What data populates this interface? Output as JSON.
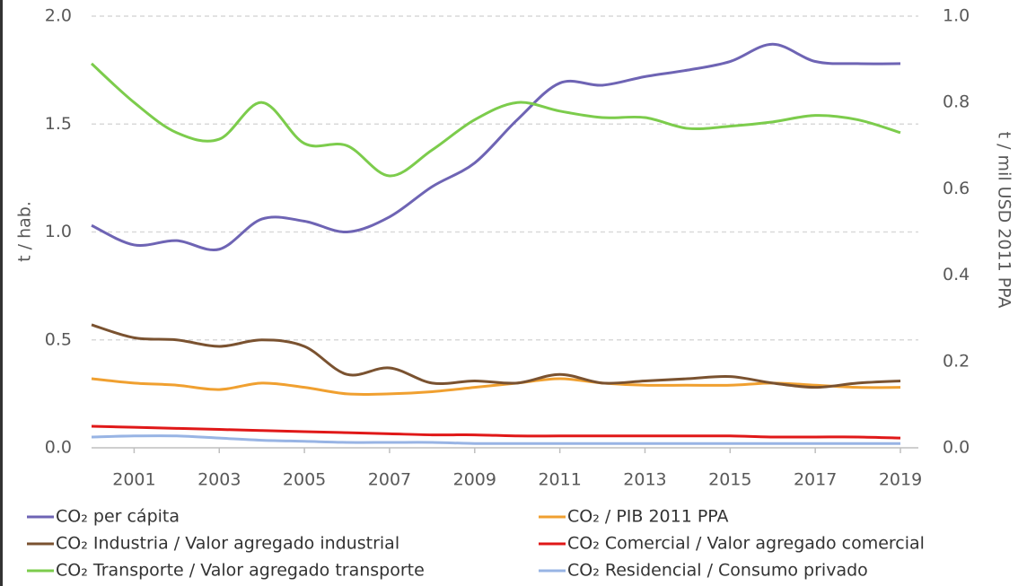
{
  "chart_data": {
    "type": "line",
    "ylabel": "t / hab.",
    "y2label": "t / mil USD 2011 PPA",
    "x": [
      2000,
      2001,
      2002,
      2003,
      2004,
      2005,
      2006,
      2007,
      2008,
      2009,
      2010,
      2011,
      2012,
      2013,
      2014,
      2015,
      2016,
      2017,
      2018,
      2019
    ],
    "xlim": [
      2000,
      2019
    ],
    "xticks": [
      2001,
      2003,
      2005,
      2007,
      2009,
      2011,
      2013,
      2015,
      2017,
      2019
    ],
    "ylim": [
      0,
      2
    ],
    "yticks": [
      {
        "value": 0,
        "label": "0.0"
      },
      0.5,
      {
        "value": 1,
        "label": "1.0"
      },
      1.5,
      {
        "value": 2,
        "label": "2.0"
      }
    ],
    "y2lim": [
      0,
      1
    ],
    "y2ticks": [
      {
        "value": 0,
        "label": "0.0"
      },
      0.2,
      0.4,
      0.6,
      0.8,
      {
        "value": 1,
        "label": "1.0"
      }
    ],
    "grid": true,
    "series": [
      {
        "name": "CO₂ per cápita",
        "color": "#6e64b4",
        "axis": "y",
        "values": [
          1.03,
          0.94,
          0.96,
          0.92,
          1.06,
          1.05,
          1.0,
          1.07,
          1.21,
          1.32,
          1.52,
          1.69,
          1.68,
          1.72,
          1.75,
          1.79,
          1.87,
          1.79,
          1.78,
          1.78
        ]
      },
      {
        "name": "CO₂ / PIB 2011 PPA",
        "color": "#f0a030",
        "axis": "y2",
        "values": [
          0.16,
          0.15,
          0.145,
          0.135,
          0.15,
          0.14,
          0.125,
          0.125,
          0.13,
          0.14,
          0.15,
          0.16,
          0.15,
          0.145,
          0.145,
          0.145,
          0.15,
          0.145,
          0.14,
          0.14
        ]
      },
      {
        "name": "CO₂ Industria / Valor agregado industrial",
        "color": "#7a5230",
        "axis": "y2",
        "values": [
          0.285,
          0.255,
          0.25,
          0.235,
          0.25,
          0.235,
          0.17,
          0.185,
          0.15,
          0.155,
          0.15,
          0.17,
          0.15,
          0.155,
          0.16,
          0.165,
          0.15,
          0.14,
          0.15,
          0.155
        ]
      },
      {
        "name": "CO₂ Comercial / Valor agregado comercial",
        "color": "#e01818",
        "axis": "y2",
        "values": [
          0.05,
          0.0475,
          0.045,
          0.0425,
          0.04,
          0.0375,
          0.035,
          0.0325,
          0.03,
          0.03,
          0.0275,
          0.0275,
          0.0275,
          0.0275,
          0.0275,
          0.0275,
          0.025,
          0.025,
          0.025,
          0.0225
        ]
      },
      {
        "name": "CO₂ Transporte / Valor agregado transporte",
        "color": "#7ccc4c",
        "axis": "y2",
        "values": [
          0.89,
          0.8,
          0.73,
          0.715,
          0.8,
          0.705,
          0.7,
          0.63,
          0.69,
          0.76,
          0.8,
          0.78,
          0.765,
          0.765,
          0.74,
          0.745,
          0.755,
          0.77,
          0.76,
          0.73
        ]
      },
      {
        "name": "CO₂ Residencial / Consumo privado",
        "color": "#98b4e4",
        "axis": "y2",
        "values": [
          0.025,
          0.0275,
          0.0275,
          0.0225,
          0.0175,
          0.015,
          0.0125,
          0.0125,
          0.0125,
          0.01,
          0.01,
          0.01,
          0.01,
          0.01,
          0.01,
          0.01,
          0.01,
          0.01,
          0.01,
          0.01
        ]
      }
    ]
  }
}
